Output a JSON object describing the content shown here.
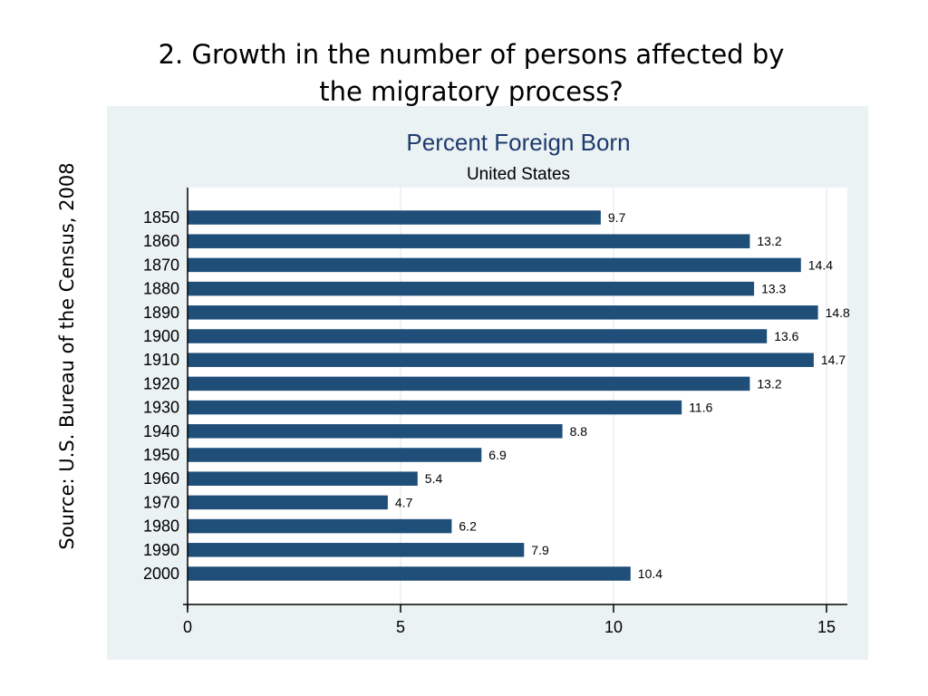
{
  "slide": {
    "title_line1": "2.   Growth in the number of persons affected by",
    "title_line2": "the migratory process?",
    "source": "Source: U.S. Bureau of the Census, 2008"
  },
  "chart_data": {
    "type": "bar",
    "orientation": "horizontal",
    "title": "Percent Foreign Born",
    "subtitle": "United States",
    "categories": [
      "1850",
      "1860",
      "1870",
      "1880",
      "1890",
      "1900",
      "1910",
      "1920",
      "1930",
      "1940",
      "1950",
      "1960",
      "1970",
      "1980",
      "1990",
      "2000"
    ],
    "values": [
      9.7,
      13.2,
      14.4,
      13.3,
      14.8,
      13.6,
      14.7,
      13.2,
      11.6,
      8.8,
      6.9,
      5.4,
      4.7,
      6.2,
      7.9,
      10.4
    ],
    "value_labels": [
      "9.7",
      "13.2",
      "14.4",
      "13.3",
      "14.8",
      "13.6",
      "14.7",
      "13.2",
      "11.6",
      "8.8",
      "6.9",
      "5.4",
      "4.7",
      "6.2",
      "7.9",
      "10.4"
    ],
    "xticks": [
      0,
      5,
      10,
      15
    ],
    "xlim": [
      0,
      15.4
    ],
    "grid": true,
    "colors": {
      "bar": "#1f4e79",
      "title": "#1f3a6e",
      "panel": "#eaf2f3",
      "plot": "#ffffff",
      "grid": "#e8eef0"
    }
  }
}
